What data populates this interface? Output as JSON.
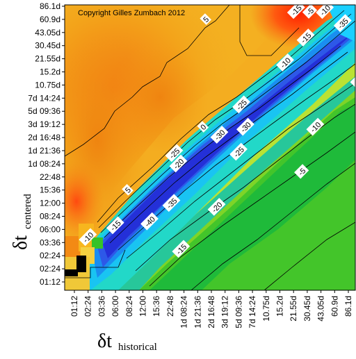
{
  "chart_data": {
    "type": "heatmap",
    "title": "",
    "annotation": "Copyright Gilles Zumbach 2012",
    "xlabel": {
      "symbol": "δt",
      "subscript": "historical"
    },
    "ylabel": {
      "symbol": "δt",
      "subscript": "centered"
    },
    "x_ticks": [
      "01:12",
      "02:24",
      "03:36",
      "06:00",
      "08:24",
      "12:00",
      "15:36",
      "22:48",
      "1d 08:24",
      "1d 21:36",
      "2d 16:48",
      "3d 19:12",
      "5d 09:36",
      "7d 14:24",
      "10.75d",
      "15.2d",
      "21.55d",
      "30.45d",
      "43.05d",
      "60.9d",
      "86.1d"
    ],
    "y_ticks": [
      "01:12",
      "02:24",
      "02:24",
      "03:36",
      "06:00",
      "08:24",
      "12:00",
      "15:36",
      "22:48",
      "1d 08:24",
      "1d 21:36",
      "2d 16:48",
      "3d 19:12",
      "5d 09:36",
      "7d 14:24",
      "10.75d",
      "15.2d",
      "21.55d",
      "30.45d",
      "43.05d",
      "60.9d",
      "86.1d"
    ],
    "contour_labels": [
      {
        "text": "5",
        "x": 9.6,
        "y": 20.0
      },
      {
        "text": "-15",
        "x": 16.2,
        "y": 20.7
      },
      {
        "text": "-5",
        "x": 17.2,
        "y": 20.6
      },
      {
        "text": "-10",
        "x": 18.3,
        "y": 20.7
      },
      {
        "text": "-35",
        "x": 19.6,
        "y": 19.7
      },
      {
        "text": "-15",
        "x": 16.9,
        "y": 18.6
      },
      {
        "text": "-10",
        "x": 15.4,
        "y": 16.7
      },
      {
        "text": "-18",
        "x": 20.8,
        "y": 15.4
      },
      {
        "text": "-25",
        "x": 12.2,
        "y": 13.5
      },
      {
        "text": "0",
        "x": 9.4,
        "y": 11.8
      },
      {
        "text": "-30",
        "x": 10.6,
        "y": 11.2
      },
      {
        "text": "-30",
        "x": 12.5,
        "y": 11.8
      },
      {
        "text": "-25",
        "x": 7.3,
        "y": 9.8
      },
      {
        "text": "-20",
        "x": 7.6,
        "y": 9.0
      },
      {
        "text": "-25",
        "x": 12.0,
        "y": 9.9
      },
      {
        "text": "-10",
        "x": 17.6,
        "y": 11.8
      },
      {
        "text": "-5",
        "x": 16.6,
        "y": 8.4
      },
      {
        "text": "5",
        "x": 3.9,
        "y": 7.0
      },
      {
        "text": "-35",
        "x": 7.1,
        "y": 6.0
      },
      {
        "text": "-20",
        "x": 10.4,
        "y": 5.7
      },
      {
        "text": "-40",
        "x": 5.5,
        "y": 4.6
      },
      {
        "text": "-15",
        "x": 3.0,
        "y": 4.3
      },
      {
        "text": "-10",
        "x": 1.0,
        "y": 3.4
      },
      {
        "text": "-15",
        "x": 7.8,
        "y": 2.5
      }
    ]
  }
}
